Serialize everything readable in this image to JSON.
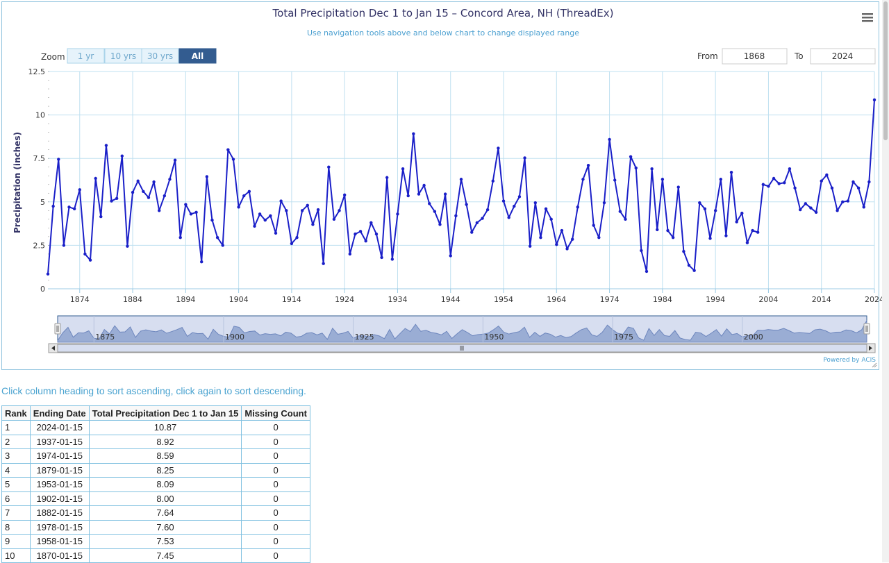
{
  "chart": {
    "title": "Total Precipitation Dec 1 to Jan 15 – Concord Area, NH (ThreadEx)",
    "subtitle": "Use navigation tools above and below chart to change displayed range",
    "zoom_label": "Zoom",
    "zoom_buttons": [
      "1 yr",
      "10 yrs",
      "30 yrs",
      "All"
    ],
    "zoom_selected": "All",
    "from_label": "From",
    "from_value": "1868",
    "to_label": "To",
    "to_value": "2024",
    "credits": "Powered by ACIS",
    "menu_icon": "hamburger-menu-icon",
    "line_color": "#1a1fc8",
    "navigator_labels": [
      "1875",
      "1900",
      "1925",
      "1950",
      "1975",
      "2000"
    ],
    "scroll_icon": "grip-icon"
  },
  "chart_data": {
    "type": "line",
    "title": "Total Precipitation Dec 1 to Jan 15 – Concord Area, NH (ThreadEx)",
    "xlabel": "",
    "ylabel": "Precipitation (inches)",
    "xlim": [
      1868,
      2024
    ],
    "ylim": [
      0,
      12.5
    ],
    "yticks": [
      "0",
      "2.5",
      "5",
      "7.5",
      "10",
      "12.5"
    ],
    "xticks": [
      "1874",
      "1884",
      "1894",
      "1904",
      "1914",
      "1924",
      "1934",
      "1944",
      "1954",
      "1964",
      "1974",
      "1984",
      "1994",
      "2004",
      "2014",
      "2024"
    ],
    "grid": true,
    "series": [
      {
        "x_start": 1868,
        "values": [
          0.85,
          4.75,
          7.45,
          2.5,
          4.7,
          4.6,
          5.7,
          2.0,
          1.65,
          6.35,
          4.15,
          8.25,
          5.05,
          5.2,
          7.64,
          2.45,
          5.55,
          6.2,
          5.6,
          5.25,
          6.15,
          4.5,
          5.35,
          6.3,
          7.4,
          2.95,
          4.85,
          4.3,
          4.4,
          1.55,
          6.45,
          3.95,
          2.95,
          2.5,
          8.0,
          7.45,
          4.7,
          5.35,
          5.6,
          3.6,
          4.3,
          3.95,
          4.2,
          3.2,
          5.05,
          4.5,
          2.6,
          2.95,
          4.5,
          4.8,
          3.7,
          4.55,
          1.45,
          7.0,
          4.0,
          4.5,
          5.4,
          2.0,
          3.15,
          3.3,
          2.75,
          3.8,
          3.15,
          1.8,
          6.4,
          1.7,
          4.3,
          6.9,
          5.35,
          8.92,
          5.45,
          5.95,
          4.9,
          4.45,
          3.7,
          5.45,
          1.9,
          4.2,
          6.3,
          4.85,
          3.25,
          3.8,
          4.05,
          4.55,
          6.2,
          8.09,
          5.05,
          4.1,
          4.75,
          5.3,
          7.53,
          2.45,
          4.95,
          2.95,
          4.6,
          4.0,
          2.55,
          3.35,
          2.3,
          2.85,
          4.7,
          6.3,
          7.1,
          3.65,
          2.95,
          4.95,
          8.59,
          6.25,
          4.45,
          4.0,
          7.6,
          6.95,
          2.2,
          1.0,
          6.9,
          3.4,
          6.3,
          3.35,
          2.95,
          5.85,
          2.15,
          1.35,
          1.05,
          4.95,
          4.6,
          2.9,
          4.5,
          6.3,
          3.05,
          6.7,
          3.85,
          4.35,
          2.65,
          3.35,
          3.25,
          6.0,
          5.9,
          6.35,
          6.05,
          6.1,
          6.9,
          5.8,
          4.55,
          4.9,
          4.65,
          4.4,
          6.2,
          6.55,
          5.8,
          4.5,
          5.0,
          5.05,
          6.15,
          5.8,
          4.7,
          6.15,
          10.87
        ]
      }
    ]
  },
  "table": {
    "hint": "Click column heading to sort ascending, click again to sort descending.",
    "headers": [
      "Rank",
      "Ending Date",
      "Total Precipitation Dec 1 to Jan 15",
      "Missing Count"
    ],
    "rows": [
      [
        "1",
        "2024-01-15",
        "10.87",
        "0"
      ],
      [
        "2",
        "1937-01-15",
        "8.92",
        "0"
      ],
      [
        "3",
        "1974-01-15",
        "8.59",
        "0"
      ],
      [
        "4",
        "1879-01-15",
        "8.25",
        "0"
      ],
      [
        "5",
        "1953-01-15",
        "8.09",
        "0"
      ],
      [
        "6",
        "1902-01-15",
        "8.00",
        "0"
      ],
      [
        "7",
        "1882-01-15",
        "7.64",
        "0"
      ],
      [
        "8",
        "1978-01-15",
        "7.60",
        "0"
      ],
      [
        "9",
        "1958-01-15",
        "7.53",
        "0"
      ],
      [
        "10",
        "1870-01-15",
        "7.45",
        "0"
      ]
    ]
  }
}
